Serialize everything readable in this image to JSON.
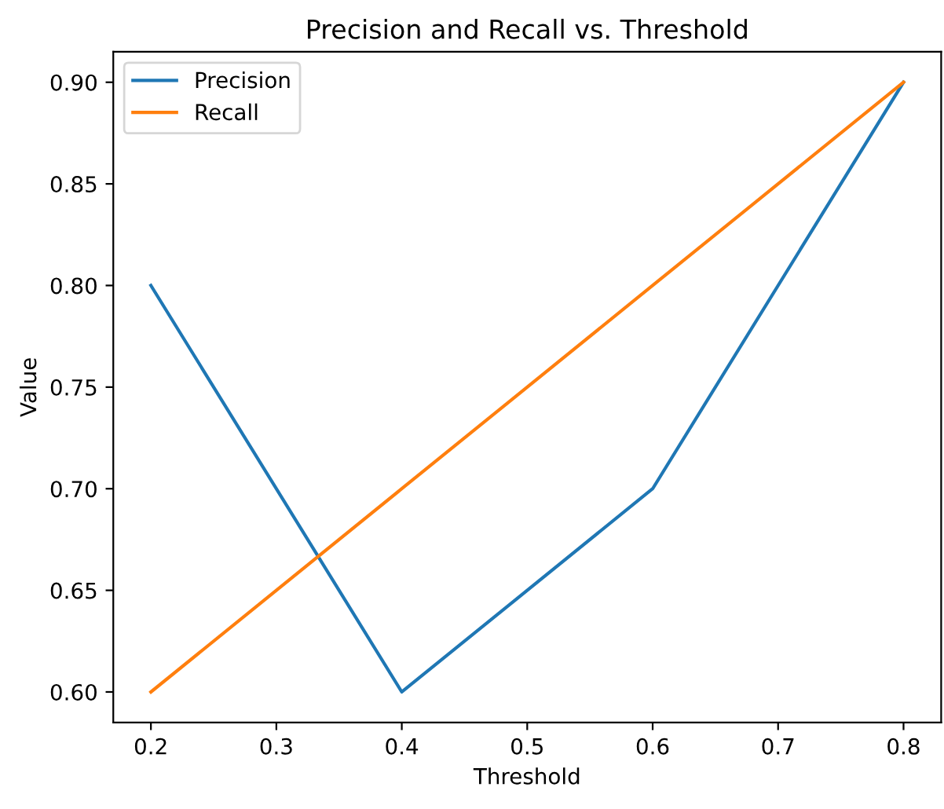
{
  "chart_data": {
    "type": "line",
    "title": "Precision and Recall vs. Threshold",
    "xlabel": "Threshold",
    "ylabel": "Value",
    "x": [
      0.2,
      0.4,
      0.6,
      0.8
    ],
    "series": [
      {
        "name": "Precision",
        "color": "#1f77b4",
        "values": [
          0.8,
          0.6,
          0.7,
          0.9
        ]
      },
      {
        "name": "Recall",
        "color": "#ff7f0e",
        "values": [
          0.6,
          0.7,
          0.8,
          0.9
        ]
      }
    ],
    "xlim": [
      0.17,
      0.83
    ],
    "xticks": [
      0.2,
      0.3,
      0.4,
      0.5,
      0.6,
      0.7,
      0.8
    ],
    "ylim": [
      0.585,
      0.915
    ],
    "yticks": [
      {
        "value": 0.6,
        "label": "0.60"
      },
      {
        "value": 0.65,
        "label": "0.65"
      },
      {
        "value": 0.7,
        "label": "0.70"
      },
      {
        "value": 0.75,
        "label": "0.75"
      },
      {
        "value": 0.8,
        "label": "0.80"
      },
      {
        "value": 0.85,
        "label": "0.85"
      },
      {
        "value": 0.9,
        "label": "0.90"
      }
    ],
    "legend": "top left"
  }
}
